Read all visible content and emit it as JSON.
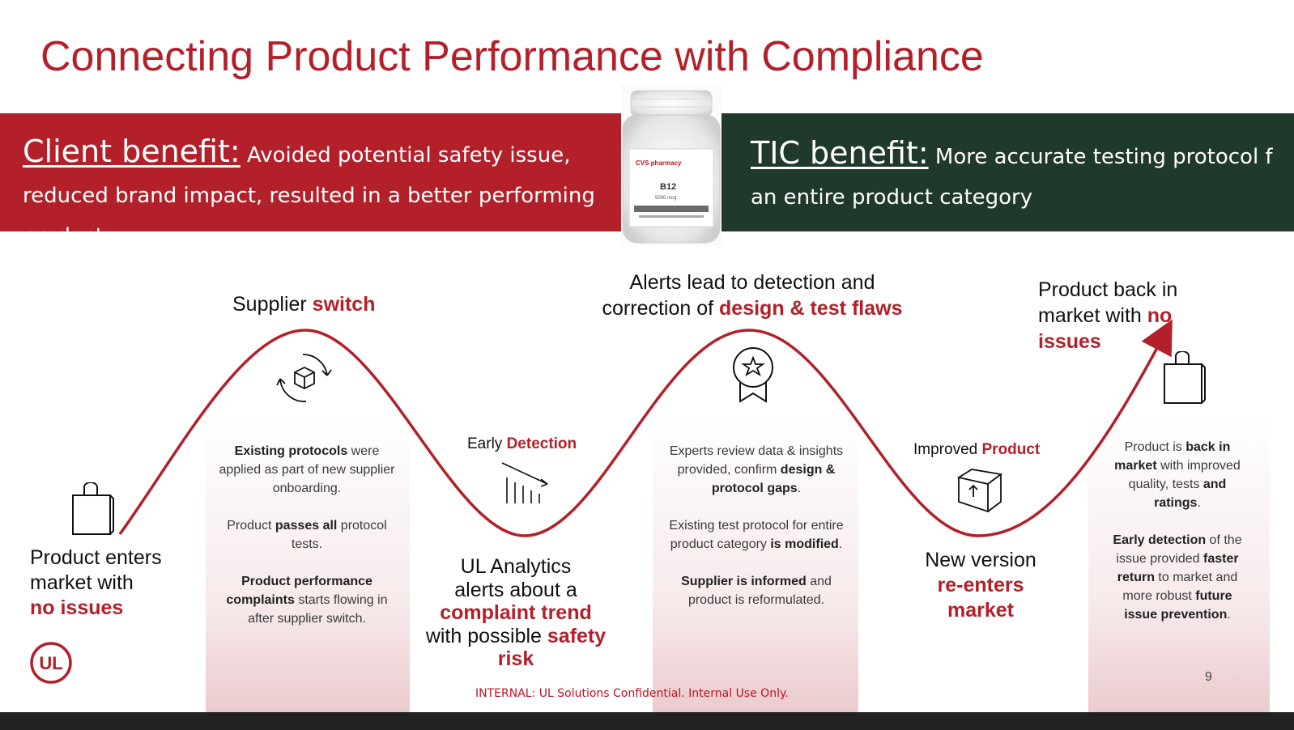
{
  "title": "Connecting Product Performance with Compliance",
  "client": {
    "heading": "Client benefit:",
    "text": "Avoided potential safety issue, reduced brand impact, resulted in a better performing product"
  },
  "tic": {
    "heading": "TIC benefit:",
    "text_line1": "More accurate testing protocol f",
    "text_line2": "an entire product category"
  },
  "bottle": {
    "label_brand": "CVS pharmacy",
    "label_product": "B12",
    "label_dose": "5000 mcg"
  },
  "labels": {
    "supplier_plain": "Supplier ",
    "supplier_red": "switch",
    "alerts_l1": "Alerts lead to detection and",
    "alerts_l2_plain": "correction of ",
    "alerts_l2_red": "design & test flaws",
    "back_l1": "Product back in",
    "back_l2_plain": "market with ",
    "back_l2_red": "no",
    "back_l3_red": "issues",
    "early_plain": "Early ",
    "early_red": "Detection",
    "improved_plain": "Improved ",
    "improved_red": "Product"
  },
  "enter": {
    "l1": "Product enters",
    "l2": "market with",
    "l3_red": "no issues"
  },
  "analytics": {
    "l1": "UL Analytics",
    "l2": "alerts about a",
    "l3_red": "complaint trend",
    "l4_plain": "with possible ",
    "l4_red": "safety",
    "l5_red": "risk"
  },
  "reenter": {
    "l1": "New version",
    "l2_red": "re-enters",
    "l3_red": "market"
  },
  "col1": {
    "p1_b": "Existing protocols",
    "p1_rest": " were applied as part of new supplier onboarding.",
    "p2_a": "Product ",
    "p2_b": "passes all",
    "p2_rest": " protocol tests.",
    "p3_b": "Product performance complaints",
    "p3_rest": " starts flowing in after supplier switch."
  },
  "col2": {
    "p1_a": "Experts review data & insights provided, confirm ",
    "p1_b": "design & protocol gaps",
    "p1_c": ".",
    "p2_a": "Existing test protocol for entire product category ",
    "p2_b": "is modified",
    "p2_c": ".",
    "p3_b": "Supplier is informed",
    "p3_rest": " and product is reformulated."
  },
  "col3": {
    "p1_a": "Product is ",
    "p1_b": "back in market",
    "p1_c": " with improved quality, tests ",
    "p1_d": "and ratings",
    "p1_e": ".",
    "p2_b1": "Early detection",
    "p2_a": " of the issue provided ",
    "p2_b2": "faster return",
    "p2_c": " to market and more robust ",
    "p2_b3": "future issue prevention",
    "p2_d": "."
  },
  "footer": "INTERNAL: UL Solutions Confidential. Internal Use Only.",
  "page_number": "9",
  "logo_text": "UL",
  "colors": {
    "brand_red": "#b3202a",
    "tic_green": "#1f3a2b"
  }
}
